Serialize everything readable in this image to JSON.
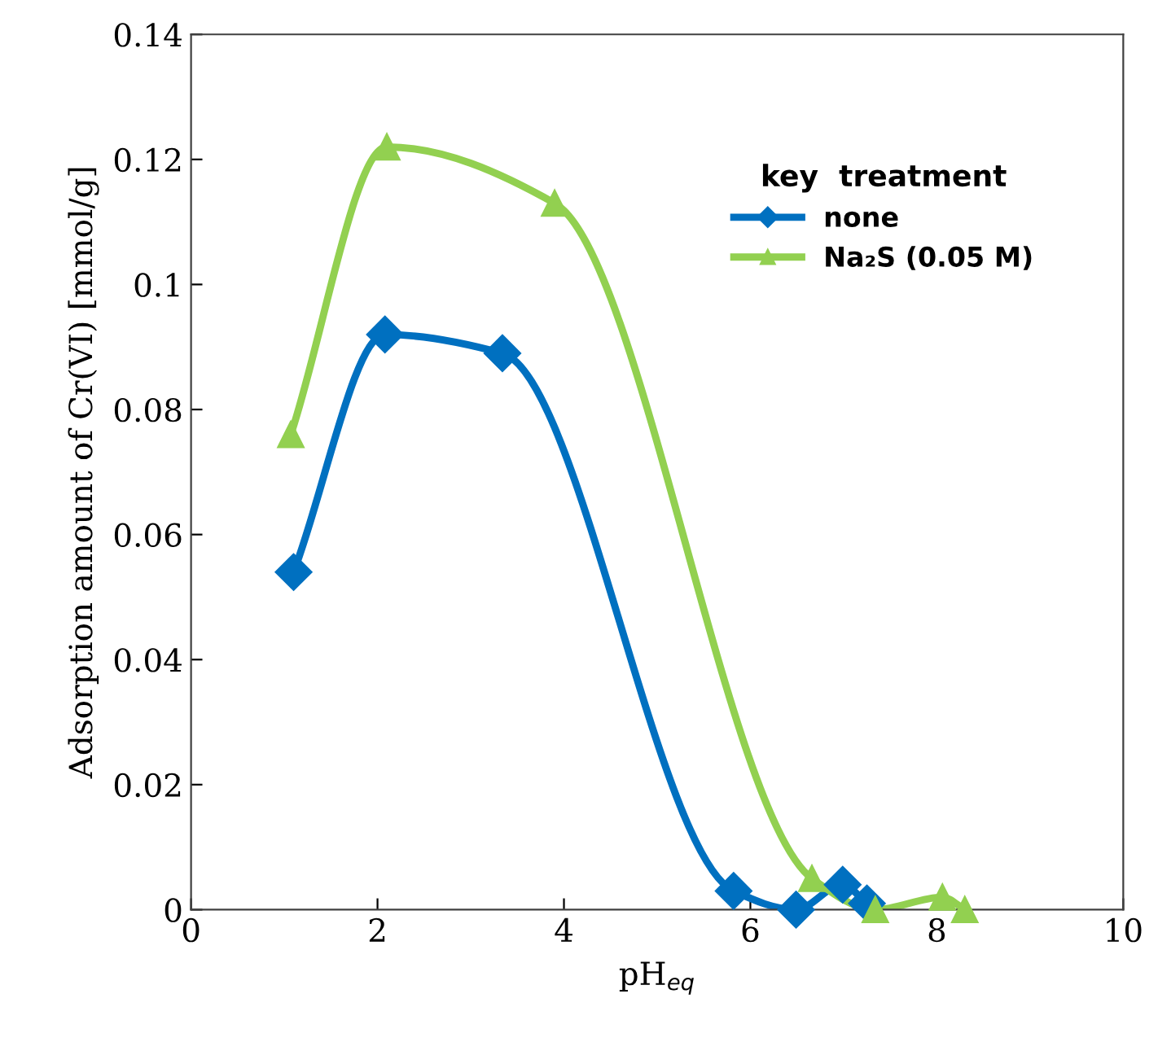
{
  "chart_data": {
    "type": "line",
    "xlabel": "pH$_{eq}$",
    "ylabel": "Adsorption amount of Cr(VI) [mmol/g]",
    "legend_title": "key  treatment",
    "legend": "top right",
    "grid": false,
    "line_style": "solid",
    "xlim": [
      0,
      10
    ],
    "xticks": [
      0,
      2,
      4,
      6,
      8,
      10
    ],
    "ylim": [
      0,
      0.14
    ],
    "yticks": [
      0,
      0.02,
      0.04,
      0.06,
      0.08,
      0.1,
      0.12,
      0.14
    ],
    "series": [
      {
        "name": "none",
        "color": "#0070c0",
        "marker": "diamond",
        "x": [
          1.1,
          2.08,
          3.34,
          5.82,
          6.49,
          6.99,
          7.25
        ],
        "values": [
          0.054,
          0.092,
          0.089,
          0.003,
          0.0,
          0.004,
          0.001
        ]
      },
      {
        "name": "Na₂S (0.05 M)",
        "color": "#92d050",
        "marker": "triangle",
        "x": [
          1.07,
          2.1,
          3.9,
          6.66,
          7.34,
          8.06,
          8.3
        ],
        "values": [
          0.076,
          0.122,
          0.113,
          0.005,
          0.0,
          0.002,
          0.0
        ]
      }
    ]
  }
}
